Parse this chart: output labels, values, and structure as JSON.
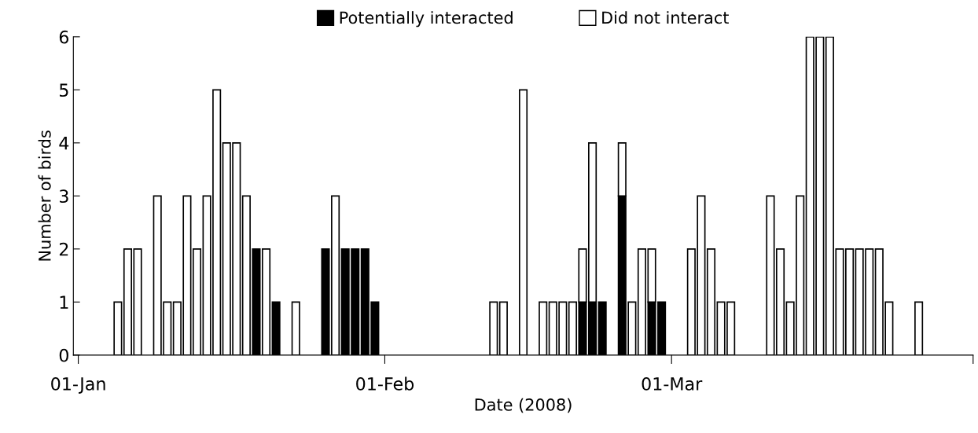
{
  "chart_data": {
    "type": "bar",
    "stacked": true,
    "xlabel": "Date (2008)",
    "ylabel": "Number of birds",
    "x": [
      "2008-01-05",
      "2008-01-06",
      "2008-01-07",
      "2008-01-09",
      "2008-01-10",
      "2008-01-11",
      "2008-01-12",
      "2008-01-13",
      "2008-01-14",
      "2008-01-15",
      "2008-01-16",
      "2008-01-17",
      "2008-01-18",
      "2008-01-19",
      "2008-01-20",
      "2008-01-21",
      "2008-01-23",
      "2008-01-26",
      "2008-01-27",
      "2008-01-28",
      "2008-01-29",
      "2008-01-30",
      "2008-01-31",
      "2008-02-12",
      "2008-02-13",
      "2008-02-15",
      "2008-02-17",
      "2008-02-18",
      "2008-02-19",
      "2008-02-20",
      "2008-02-21",
      "2008-02-22",
      "2008-02-23",
      "2008-02-25",
      "2008-02-26",
      "2008-02-27",
      "2008-02-28",
      "2008-02-29",
      "2008-03-03",
      "2008-03-04",
      "2008-03-05",
      "2008-03-06",
      "2008-03-07",
      "2008-03-11",
      "2008-03-12",
      "2008-03-13",
      "2008-03-14",
      "2008-03-15",
      "2008-03-16",
      "2008-03-17",
      "2008-03-18",
      "2008-03-19",
      "2008-03-20",
      "2008-03-21",
      "2008-03-22",
      "2008-03-23",
      "2008-03-26"
    ],
    "series": [
      {
        "name": "Potentially interacted",
        "color": "#000000",
        "values": [
          null,
          null,
          null,
          null,
          null,
          null,
          null,
          null,
          null,
          null,
          null,
          null,
          null,
          2,
          null,
          1,
          null,
          2,
          null,
          2,
          2,
          2,
          1,
          null,
          null,
          null,
          null,
          null,
          null,
          null,
          1,
          1,
          1,
          3,
          null,
          null,
          1,
          1,
          null,
          null,
          null,
          null,
          null,
          null,
          null,
          null,
          null,
          null,
          null,
          null,
          null,
          null,
          null,
          null,
          null,
          null,
          null
        ]
      },
      {
        "name": "Did not interact",
        "color": "#ffffff",
        "values": [
          1,
          2,
          2,
          3,
          1,
          1,
          3,
          2,
          3,
          5,
          4,
          4,
          3,
          null,
          2,
          null,
          1,
          null,
          3,
          null,
          null,
          null,
          null,
          1,
          1,
          5,
          1,
          1,
          1,
          1,
          1,
          3,
          null,
          1,
          1,
          2,
          1,
          null,
          2,
          3,
          2,
          1,
          1,
          3,
          2,
          1,
          3,
          6,
          6,
          6,
          2,
          2,
          2,
          2,
          2,
          1,
          1
        ]
      }
    ],
    "xlim": [
      "2007-12-31T12:00",
      "2008-03-31T12:00"
    ],
    "xticks": [
      {
        "value": "2008-01-01",
        "label": "01-Jan"
      },
      {
        "value": "2008-02-01",
        "label": "01-Feb"
      },
      {
        "value": "2008-03-01",
        "label": "01-Mar"
      },
      {
        "value": "2008-03-31T12:00",
        "label": null
      }
    ],
    "ylim": [
      0,
      6
    ],
    "yticks": [
      0,
      1,
      2,
      3,
      4,
      5,
      6
    ],
    "grid": false,
    "legend": "top"
  }
}
